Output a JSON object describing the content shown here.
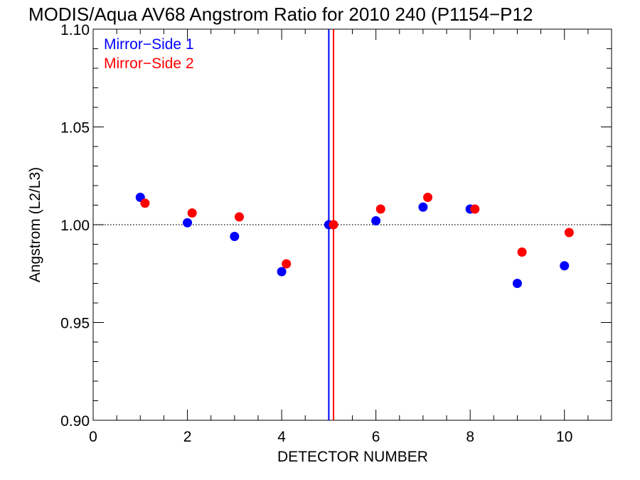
{
  "chart_data": {
    "type": "scatter",
    "title": "MODIS/Aqua AV68 Angstrom Ratio for 2010 240 (P1154−P12",
    "xlabel": "DETECTOR NUMBER",
    "ylabel": "Angstrom (L2/L3)",
    "xlim": [
      0,
      11
    ],
    "ylim": [
      0.9,
      1.1
    ],
    "x_ticks": [
      0,
      2,
      4,
      6,
      8,
      10
    ],
    "x_tick_labels": [
      "0",
      "2",
      "4",
      "6",
      "8",
      "10"
    ],
    "y_ticks": [
      0.9,
      0.95,
      1.0,
      1.05,
      1.1
    ],
    "y_tick_labels": [
      "0.90",
      "0.95",
      "1.00",
      "1.05",
      "1.10"
    ],
    "reference_line_y": 1.0,
    "legend_position": "top-left",
    "series": [
      {
        "name": "Mirror−Side 1",
        "color": "#0000ff",
        "x": [
          1,
          2,
          3,
          4,
          5,
          6,
          7,
          8,
          9,
          10
        ],
        "values": [
          1.014,
          1.001,
          0.994,
          0.976,
          1.0,
          1.002,
          1.009,
          1.008,
          0.97,
          0.979
        ],
        "vertical_line_x": 5.0
      },
      {
        "name": "Mirror−Side 2",
        "color": "#ff0000",
        "x": [
          1.1,
          2.1,
          3.1,
          4.1,
          5.1,
          6.1,
          7.1,
          8.1,
          9.1,
          10.1
        ],
        "values": [
          1.011,
          1.006,
          1.004,
          0.98,
          1.0,
          1.008,
          1.014,
          1.008,
          0.986,
          0.996
        ],
        "vertical_line_x": 5.1
      }
    ]
  }
}
